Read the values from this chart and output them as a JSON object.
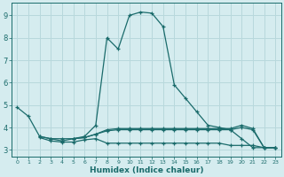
{
  "xlabel": "Humidex (Indice chaleur)",
  "bg_color": "#d5ecef",
  "grid_color": "#b8d8dc",
  "line_color": "#1a6b6b",
  "xlim": [
    -0.5,
    23.5
  ],
  "ylim": [
    2.7,
    9.55
  ],
  "yticks": [
    3,
    4,
    5,
    6,
    7,
    8,
    9
  ],
  "xticks": [
    0,
    1,
    2,
    3,
    4,
    5,
    6,
    7,
    8,
    9,
    10,
    11,
    12,
    13,
    14,
    15,
    16,
    17,
    18,
    19,
    20,
    21,
    22,
    23
  ],
  "series": [
    {
      "x": [
        0,
        1,
        2,
        3,
        4,
        5,
        6,
        7,
        8,
        9,
        10,
        11,
        12,
        13,
        14,
        15,
        16,
        17,
        18,
        19,
        20,
        21,
        22,
        23
      ],
      "y": [
        4.9,
        4.5,
        3.6,
        3.5,
        3.4,
        3.5,
        3.6,
        4.1,
        8.0,
        7.5,
        9.0,
        9.15,
        9.1,
        8.5,
        5.9,
        5.3,
        4.7,
        4.1,
        4.0,
        3.9,
        3.5,
        3.1,
        3.1,
        3.1
      ]
    },
    {
      "x": [
        2,
        3,
        4,
        5,
        6,
        7,
        8,
        9,
        10,
        11,
        12,
        13,
        14,
        15,
        16,
        17,
        18,
        19,
        20,
        21,
        22,
        23
      ],
      "y": [
        3.6,
        3.5,
        3.5,
        3.5,
        3.55,
        3.7,
        3.9,
        3.95,
        3.95,
        3.95,
        3.95,
        3.95,
        3.95,
        3.95,
        3.95,
        3.95,
        3.95,
        3.95,
        4.1,
        3.95,
        3.1,
        3.1
      ]
    },
    {
      "x": [
        2,
        3,
        4,
        5,
        6,
        7,
        8,
        9,
        10,
        11,
        12,
        13,
        14,
        15,
        16,
        17,
        18,
        19,
        20,
        21,
        22,
        23
      ],
      "y": [
        3.55,
        3.4,
        3.35,
        3.35,
        3.45,
        3.5,
        3.3,
        3.3,
        3.3,
        3.3,
        3.3,
        3.3,
        3.3,
        3.3,
        3.3,
        3.3,
        3.3,
        3.2,
        3.2,
        3.2,
        3.1,
        3.1
      ]
    },
    {
      "x": [
        5,
        6,
        7,
        8,
        9,
        10,
        11,
        12,
        13,
        14,
        15,
        16,
        17,
        18,
        19,
        20,
        21,
        22,
        23
      ],
      "y": [
        3.5,
        3.55,
        3.7,
        3.85,
        3.9,
        3.9,
        3.9,
        3.9,
        3.9,
        3.9,
        3.9,
        3.9,
        3.9,
        3.9,
        3.9,
        4.0,
        3.9,
        3.1,
        3.1
      ]
    }
  ]
}
